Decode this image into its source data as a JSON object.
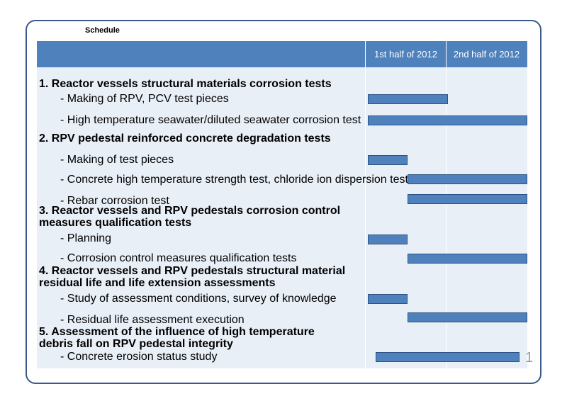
{
  "slide": {
    "title": "Schedule",
    "page_number": "1"
  },
  "header": {
    "col1": "1st half of 2012",
    "col2": "2nd half of 2012"
  },
  "sections": [
    {
      "heading": "1. Reactor vessels structural materials corrosion tests",
      "tasks": [
        {
          "label": "- Making of RPV, PCV test pieces",
          "start": 0.0,
          "end": 0.5
        },
        {
          "label": "- High temperature seawater/diluted seawater corrosion test",
          "start": 0.0,
          "end": 1.0
        }
      ]
    },
    {
      "heading": "2. RPV pedestal reinforced concrete degradation tests",
      "tasks": [
        {
          "label": "- Making of test pieces",
          "start": 0.0,
          "end": 0.25
        },
        {
          "label": "- Concrete high temperature strength test, chloride ion dispersion test",
          "start": 0.25,
          "end": 1.0
        },
        {
          "label": "- Rebar corrosion test",
          "start": 0.25,
          "end": 1.0
        }
      ]
    },
    {
      "heading_line1": "3. Reactor vessels and RPV pedestals corrosion control",
      "heading_line2": "measures qualification tests",
      "tasks": [
        {
          "label": "- Planning",
          "start": 0.0,
          "end": 0.25
        },
        {
          "label": "- Corrosion control measures qualification tests",
          "start": 0.25,
          "end": 1.0
        }
      ]
    },
    {
      "heading_line1": "4. Reactor vessels and RPV pedestals structural material",
      "heading_line2": "residual life and life extension assessments",
      "tasks": [
        {
          "label": "- Study of assessment conditions, survey of knowledge",
          "start": 0.0,
          "end": 0.25
        },
        {
          "label": "- Residual life assessment execution",
          "start": 0.25,
          "end": 1.0
        }
      ]
    },
    {
      "heading_line1": "5. Assessment of the influence of high temperature",
      "heading_line2": "debris fall on RPV pedestal integrity",
      "tasks": [
        {
          "label": "- Concrete erosion status study",
          "start": 0.05,
          "end": 0.95
        }
      ]
    }
  ],
  "colors": {
    "header": "#4f81bd",
    "bar": "#4f81bd",
    "frame": "#3b5a8a"
  }
}
